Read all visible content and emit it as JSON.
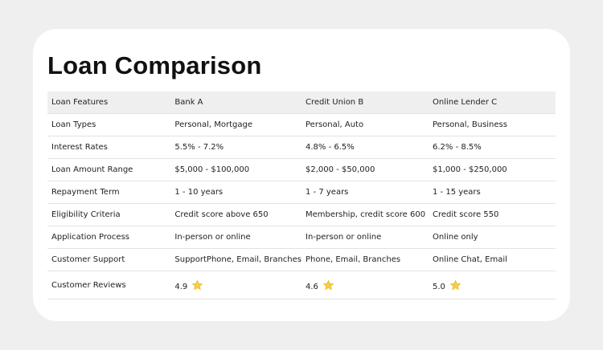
{
  "header": {
    "title": "Loan Comparison"
  },
  "table": {
    "columns": [
      "Loan Features",
      "Bank A",
      "Credit Union B",
      "Online Lender C"
    ],
    "rows": [
      [
        "Loan Types",
        "Personal, Mortgage",
        "Personal, Auto",
        "Personal, Business"
      ],
      [
        "Interest Rates",
        "5.5% - 7.2%",
        "4.8% - 6.5%",
        "6.2% - 8.5%"
      ],
      [
        "Loan Amount Range",
        "$5,000 - $100,000",
        "$2,000 - $50,000",
        "$1,000 - $250,000"
      ],
      [
        "Repayment Term",
        "1 - 10 years",
        "1 - 7 years",
        "1 - 15 years"
      ],
      [
        "Eligibility Criteria",
        "Credit score above 650",
        "Membership, credit score 600",
        "Credit score 550"
      ],
      [
        "Application Process",
        "In-person or online",
        "In-person or online",
        "Online only"
      ],
      [
        "Customer Support",
        "SupportPhone, Email, Branches",
        "Phone, Email, Branches",
        "Online Chat, Email"
      ],
      [
        "Customer Reviews",
        "4.9",
        "4.6",
        "5.0"
      ]
    ]
  }
}
